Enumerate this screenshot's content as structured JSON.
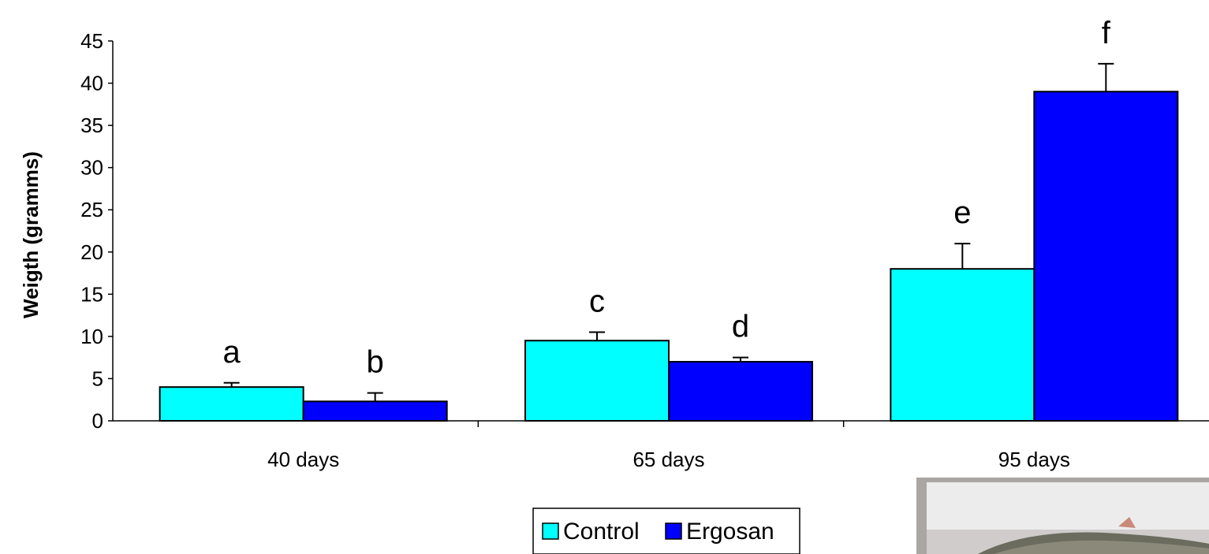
{
  "chart_data": {
    "type": "bar",
    "title": "",
    "xlabel": "",
    "ylabel": "Weigth (gramms)",
    "ylim": [
      0,
      45
    ],
    "yticks": [
      0,
      5,
      10,
      15,
      20,
      25,
      30,
      35,
      40,
      45
    ],
    "categories": [
      "40 days",
      "65 days",
      "95 days"
    ],
    "series": [
      {
        "name": "Control",
        "color": "#00ffff",
        "values": [
          4.0,
          9.5,
          18.0
        ],
        "errors": [
          0.5,
          1.0,
          3.0
        ],
        "letters": [
          "a",
          "c",
          "e"
        ]
      },
      {
        "name": "Ergosan",
        "color": "#0000ff",
        "values": [
          2.3,
          7.0,
          39.0
        ],
        "errors": [
          1.0,
          0.5,
          3.3
        ],
        "letters": [
          "b",
          "d",
          "f"
        ]
      }
    ],
    "grid": false,
    "legend_position": "bottom-center"
  },
  "photo": {
    "icon": "fish-photo"
  }
}
